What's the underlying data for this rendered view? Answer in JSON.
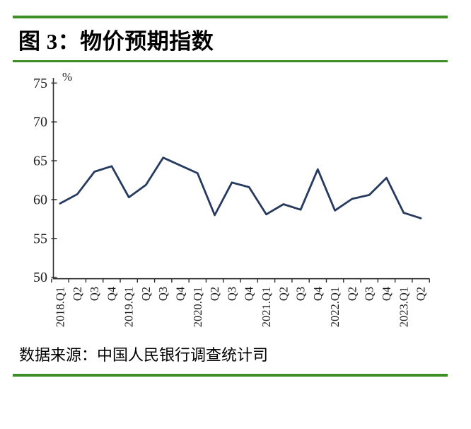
{
  "page": {
    "title": "图 3：物价预期指数",
    "source": "数据来源：中国人民银行调查统计司"
  },
  "colors": {
    "rule_green": "#3E8E28",
    "series_line": "#263A5F",
    "axis": "#2e2e2e",
    "tick_label": "#1f1f1f"
  },
  "chart_data": {
    "type": "line",
    "title": "物价预期指数",
    "unit_label": "%",
    "legend": null,
    "grid": false,
    "ylim": [
      50,
      75
    ],
    "yticks": [
      75,
      70,
      65,
      60,
      55,
      50
    ],
    "categories": [
      "2018.Q1",
      "Q2",
      "Q3",
      "Q4",
      "2019.Q1",
      "Q2",
      "Q3",
      "Q4",
      "2020.Q1",
      "Q2",
      "Q3",
      "Q4",
      "2021.Q1",
      "Q2",
      "Q3",
      "Q4",
      "2022.Q1",
      "Q2",
      "Q3",
      "Q4",
      "2023.Q1",
      "Q2"
    ],
    "values": [
      59.5,
      60.7,
      63.6,
      64.3,
      60.3,
      61.9,
      65.4,
      64.4,
      63.4,
      58.0,
      62.2,
      61.6,
      58.1,
      59.4,
      58.7,
      63.9,
      58.6,
      60.1,
      60.6,
      62.8,
      58.3,
      57.6
    ]
  }
}
